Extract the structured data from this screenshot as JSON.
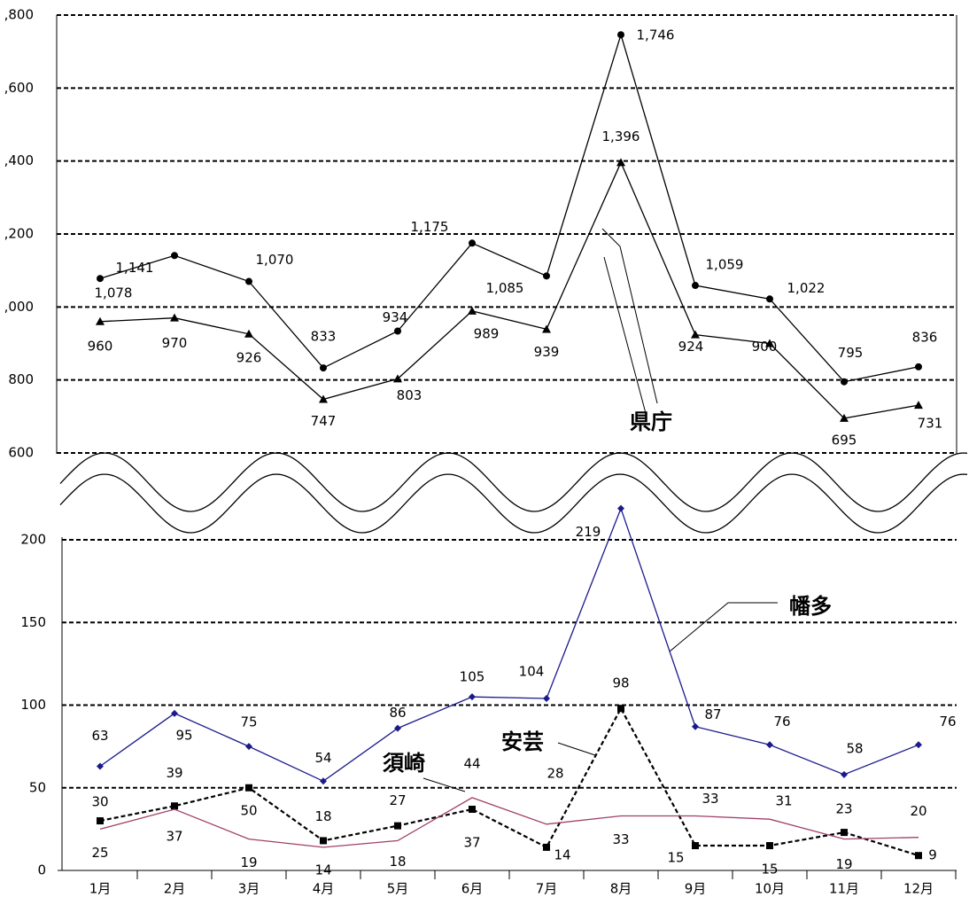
{
  "chart_data": [
    {
      "type": "line",
      "annotation": "県庁",
      "ylim": [
        600,
        1800
      ],
      "yticks": [
        {
          "value": 1800,
          "label": ",800"
        },
        {
          "value": 1600,
          "label": ",600"
        },
        {
          "value": 1400,
          "label": ",400"
        },
        {
          "value": 1200,
          "label": ",200"
        },
        {
          "value": 1000,
          "label": ",000"
        },
        800,
        600
      ],
      "grid": true,
      "series": [
        {
          "color": "#000000",
          "marker": "circle",
          "dash": false,
          "values": [
            1078,
            1141,
            1070,
            833,
            934,
            1175,
            1085,
            1746,
            1059,
            1022,
            795,
            836
          ],
          "value_labels": [
            "1,078",
            "1,141",
            "1,070",
            "833",
            "934",
            "1,175",
            "1,085",
            "1,746",
            "1,059",
            "1,022",
            "795",
            "836"
          ]
        },
        {
          "color": "#000000",
          "marker": "triangle",
          "dash": false,
          "values": [
            960,
            970,
            926,
            747,
            803,
            989,
            939,
            1396,
            924,
            900,
            695,
            731
          ],
          "value_labels": [
            "960",
            "970",
            "926",
            "747",
            "803",
            "989",
            "939",
            "1,396",
            "924",
            "900",
            "695",
            "731"
          ]
        }
      ]
    },
    {
      "type": "line",
      "categories": [
        "1月",
        "2月",
        "3月",
        "4月",
        "5月",
        "6月",
        "7月",
        "8月",
        "9月",
        "10月",
        "11月",
        "12月"
      ],
      "ylim": [
        0,
        200
      ],
      "yticks": [
        0,
        50,
        100,
        150,
        200
      ],
      "grid": true,
      "series": [
        {
          "name": "幡多",
          "color": "#1a1a8c",
          "marker": "diamond",
          "dash": false,
          "values": [
            63,
            95,
            75,
            54,
            86,
            105,
            104,
            219,
            87,
            76,
            58,
            76
          ]
        },
        {
          "name": "安芸",
          "color": "#000000",
          "marker": "square",
          "dash": true,
          "values": [
            30,
            39,
            50,
            18,
            27,
            37,
            14,
            98,
            15,
            15,
            23,
            9
          ]
        },
        {
          "name": "須崎",
          "color": "#a0406a",
          "marker": "none",
          "dash": false,
          "values": [
            25,
            37,
            19,
            14,
            18,
            44,
            28,
            33,
            33,
            31,
            19,
            20
          ]
        }
      ]
    }
  ]
}
